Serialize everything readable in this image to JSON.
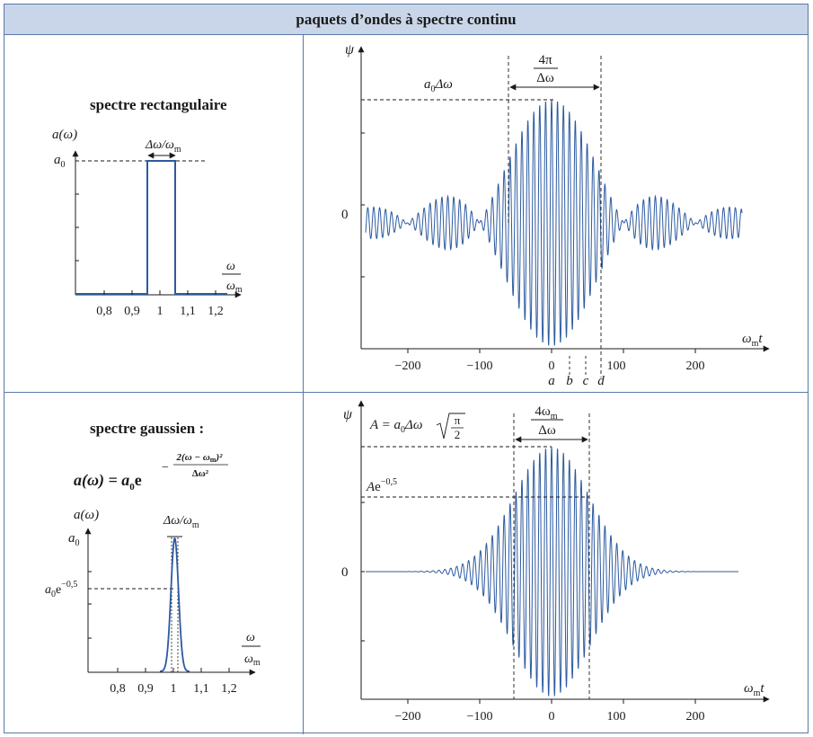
{
  "header": {
    "title": "paquets d’ondes à spectre continu"
  },
  "rect": {
    "title": "spectre rectangulaire",
    "ylabel": "a(ω)",
    "a0": "a",
    "a0_sub": "0",
    "width_label": "Δω/ω",
    "width_sub": "m",
    "x_num": "ω",
    "x_den": "ω",
    "x_den_sub": "m",
    "xticks": [
      "0,8",
      "0,9",
      "1",
      "1,1",
      "1,2"
    ]
  },
  "gauss": {
    "title": "spectre gaussien :",
    "formula_lhs": "a(ω) = a",
    "formula_lhs_sub": "0",
    "formula_e": "e",
    "exp_num": "2(ω − ω",
    "exp_num_sub": "m",
    "exp_num_end": ")²",
    "exp_den": "Δω²",
    "ylabel": "a(ω)",
    "a0": "a",
    "a0_sub": "0",
    "a0e_main": "a",
    "a0e_sub": "0",
    "a0e_exp": "e",
    "a0e_sup": "−0,5",
    "width_label": "Δω/ω",
    "width_sub": "m",
    "x_num": "ω",
    "x_den": "ω",
    "x_den_sub": "m",
    "xticks": [
      "0,8",
      "0,9",
      "1",
      "1,1",
      "1,2"
    ]
  },
  "wave1": {
    "ylabel": "ψ",
    "zero": "0",
    "amp_label": "a",
    "amp_sub": "0",
    "amp_end": "Δω",
    "width_num": "4π",
    "width_den": "Δω",
    "xlabel": "ω",
    "xlabel_sub": "m",
    "xlabel_end": "t",
    "xticks": [
      "−200",
      "−100",
      "0",
      "100",
      "200"
    ],
    "markers": [
      "a",
      "b",
      "c",
      "d"
    ]
  },
  "wave2": {
    "ylabel": "ψ",
    "zero": "0",
    "amp_eq": "A = a",
    "amp_sub": "0",
    "amp_end": "Δω",
    "sqrt_num": "π",
    "sqrt_den": "2",
    "width_num": "4ω",
    "width_num_sub": "m",
    "width_den": "Δω",
    "ae_label": "A",
    "ae_e": "e",
    "ae_sup": "−0,5",
    "xlabel": "ω",
    "xlabel_sub": "m",
    "xlabel_end": "t",
    "xticks": [
      "−200",
      "−100",
      "0",
      "100",
      "200"
    ]
  },
  "colors": {
    "curve": "#2c5aa0",
    "border": "#5a78a8",
    "header_bg": "#c9d5e8"
  }
}
